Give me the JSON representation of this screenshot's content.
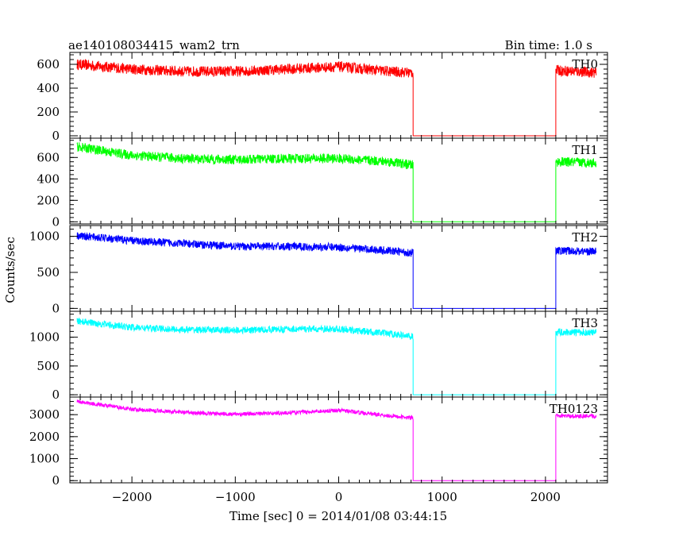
{
  "header": {
    "title": "ae140108034415_wam2_trn",
    "bin_time": "Bin time: 1.0 s"
  },
  "chart_data": {
    "type": "line",
    "xlabel": "Time [sec] 0 = 2014/01/08 03:44:15",
    "ylabel": "Counts/sec",
    "xlim": [
      -2600,
      2600
    ],
    "xticks": [
      -2000,
      -1000,
      0,
      1000,
      2000
    ],
    "xtick_labels": [
      "−2000",
      "−1000",
      "0",
      "1000",
      "2000"
    ],
    "gap": [
      720,
      2100
    ],
    "data_range": [
      -2530,
      2490
    ],
    "panels": [
      {
        "name": "TH0",
        "color": "#ff0000",
        "ylim": [
          -20,
          700
        ],
        "yticks": [
          0,
          200,
          400,
          600
        ],
        "ytick_labels": [
          "0",
          "200",
          "400",
          "600"
        ],
        "noise": 45,
        "gap_level": 0,
        "trend": [
          [
            -2530,
            600
          ],
          [
            -2000,
            560
          ],
          [
            -1500,
            540
          ],
          [
            -1000,
            540
          ],
          [
            -500,
            560
          ],
          [
            0,
            580
          ],
          [
            500,
            540
          ],
          [
            700,
            530
          ],
          [
            2100,
            550
          ],
          [
            2490,
            530
          ]
        ]
      },
      {
        "name": "TH1",
        "color": "#00ff00",
        "ylim": [
          -20,
          780
        ],
        "yticks": [
          0,
          200,
          400,
          600
        ],
        "ytick_labels": [
          "0",
          "200",
          "400",
          "600"
        ],
        "noise": 45,
        "gap_level": 0,
        "trend": [
          [
            -2530,
            700
          ],
          [
            -2000,
            620
          ],
          [
            -1500,
            590
          ],
          [
            -1000,
            580
          ],
          [
            -500,
            590
          ],
          [
            0,
            590
          ],
          [
            500,
            560
          ],
          [
            700,
            530
          ],
          [
            2100,
            560
          ],
          [
            2490,
            550
          ]
        ]
      },
      {
        "name": "TH2",
        "color": "#0000ff",
        "ylim": [
          -40,
          1150
        ],
        "yticks": [
          0,
          500,
          1000
        ],
        "ytick_labels": [
          "0",
          "500",
          "1000"
        ],
        "noise": 55,
        "gap_level": 0,
        "trend": [
          [
            -2530,
            1010
          ],
          [
            -2000,
            940
          ],
          [
            -1500,
            900
          ],
          [
            -1000,
            860
          ],
          [
            -500,
            860
          ],
          [
            0,
            850
          ],
          [
            500,
            800
          ],
          [
            700,
            770
          ],
          [
            2100,
            800
          ],
          [
            2490,
            790
          ]
        ]
      },
      {
        "name": "TH3",
        "color": "#00ffff",
        "ylim": [
          -40,
          1450
        ],
        "yticks": [
          0,
          500,
          1000
        ],
        "ytick_labels": [
          "0",
          "500",
          "1000"
        ],
        "noise": 60,
        "gap_level": 0,
        "trend": [
          [
            -2530,
            1280
          ],
          [
            -2000,
            1170
          ],
          [
            -1500,
            1130
          ],
          [
            -1000,
            1120
          ],
          [
            -500,
            1140
          ],
          [
            0,
            1140
          ],
          [
            500,
            1060
          ],
          [
            700,
            1010
          ],
          [
            2100,
            1090
          ],
          [
            2490,
            1080
          ]
        ]
      },
      {
        "name": "TH0123",
        "color": "#ff00ff",
        "ylim": [
          -100,
          3800
        ],
        "yticks": [
          0,
          1000,
          2000,
          3000
        ],
        "ytick_labels": [
          "0",
          "1000",
          "2000",
          "3000"
        ],
        "noise": 90,
        "gap_level": 0,
        "trend": [
          [
            -2530,
            3600
          ],
          [
            -2000,
            3250
          ],
          [
            -1500,
            3100
          ],
          [
            -1000,
            3020
          ],
          [
            -500,
            3080
          ],
          [
            0,
            3200
          ],
          [
            300,
            3050
          ],
          [
            700,
            2850
          ],
          [
            2100,
            2950
          ],
          [
            2490,
            2920
          ]
        ]
      }
    ]
  }
}
